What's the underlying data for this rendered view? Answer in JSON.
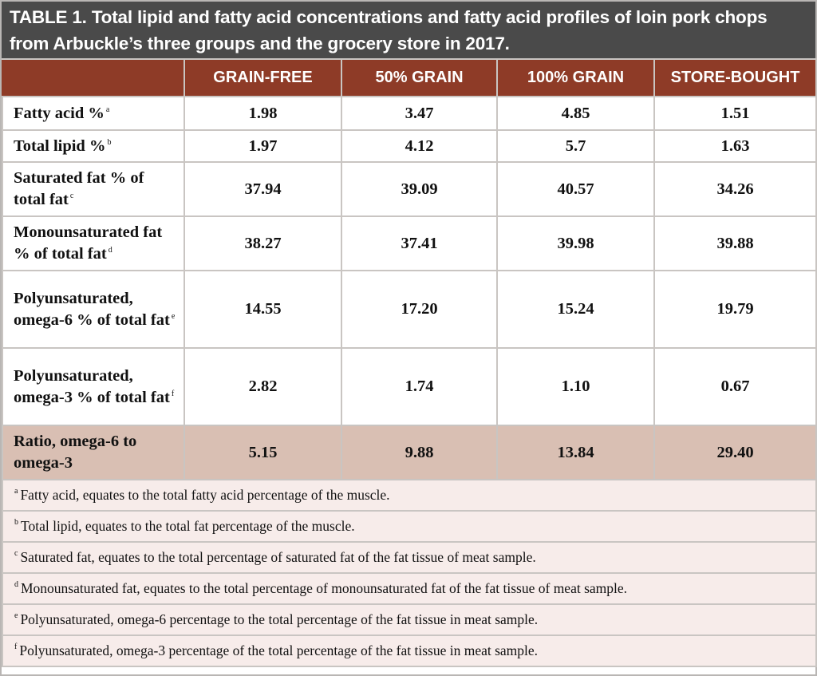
{
  "title": {
    "label": "TABLE 1.",
    "text": "Total lipid and fatty acid concentrations and fatty acid profiles of loin pork chops from Arbuckle’s three groups and the grocery store in 2017."
  },
  "columns": [
    "GRAIN-FREE",
    "50% GRAIN",
    "100% GRAIN",
    "STORE-BOUGHT"
  ],
  "rows": [
    {
      "label": "Fatty acid %",
      "note": "a",
      "values": [
        "1.98",
        "3.47",
        "4.85",
        "1.51"
      ]
    },
    {
      "label": "Total lipid %",
      "note": "b",
      "values": [
        "1.97",
        "4.12",
        "5.7",
        "1.63"
      ]
    },
    {
      "label": "Saturated fat %  of total fat",
      "note": "c",
      "values": [
        "37.94",
        "39.09",
        "40.57",
        "34.26"
      ]
    },
    {
      "label": "Monounsaturated fat % of total fat",
      "note": "d",
      "values": [
        "38.27",
        "37.41",
        "39.98",
        "39.88"
      ]
    },
    {
      "label": "Polyunsaturated, omega-6 % of total fat",
      "note": "e",
      "values": [
        "14.55",
        "17.20",
        "15.24",
        "19.79"
      ]
    },
    {
      "label": "Polyunsaturated, omega-3 % of total fat",
      "note": "f",
      "values": [
        "2.82",
        "1.74",
        "1.10",
        "0.67"
      ]
    },
    {
      "label": "Ratio, omega-6 to omega-3",
      "note": "",
      "values": [
        "5.15",
        "9.88",
        "13.84",
        "29.40"
      ]
    }
  ],
  "footnotes": [
    {
      "mark": "a",
      "text": "Fatty acid, equates to the total fatty acid percentage of the muscle."
    },
    {
      "mark": "b",
      "text": "Total lipid, equates to the total fat percentage of the muscle."
    },
    {
      "mark": "c",
      "text": "Saturated fat, equates to the total percentage of saturated fat of the fat tissue of meat sample."
    },
    {
      "mark": "d",
      "text": "Monounsaturated fat, equates to the total percentage of monounsaturated fat of the fat tissue of meat sample."
    },
    {
      "mark": "e",
      "text": "Polyunsaturated, omega-6 percentage to the total percentage of the fat tissue in meat sample."
    },
    {
      "mark": "f",
      "text": "Polyunsaturated, omega-3 percentage of the total percentage of the fat tissue in meat sample."
    }
  ],
  "colors": {
    "title_bar": "#4a4a4a",
    "header_row": "#8e3b27",
    "highlight_row": "#d9bfb3",
    "footnote_background": "#f7ecea"
  }
}
